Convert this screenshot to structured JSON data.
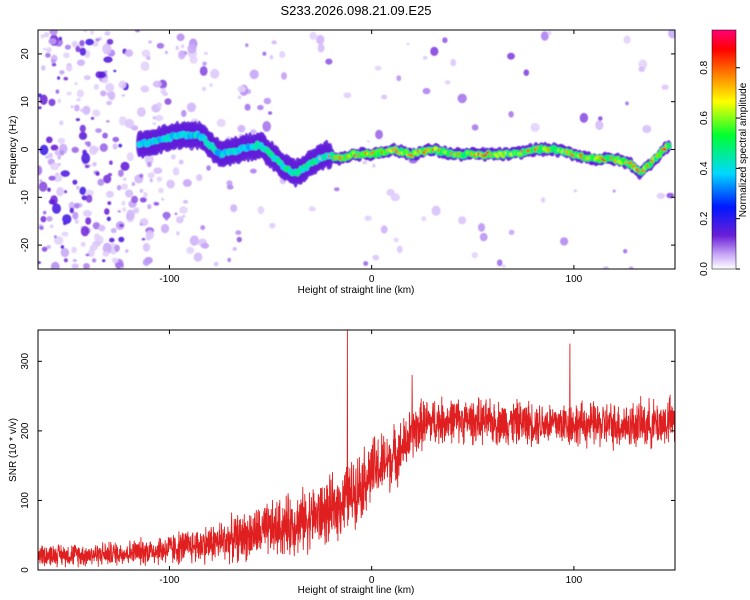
{
  "title": "S233.2026.098.21.09.E25",
  "chart_data": [
    {
      "type": "heatmap",
      "name": "spectrogram",
      "xlabel": "Height of straight line (km)",
      "ylabel": "Frequency (Hz)",
      "xlim": [
        -165,
        150
      ],
      "ylim": [
        -25,
        25
      ],
      "xticks": [
        -100,
        0,
        100
      ],
      "yticks": [
        -20,
        -10,
        0,
        10,
        20
      ],
      "xtick_labels": [
        "-100",
        "0",
        "100"
      ],
      "ytick_labels": [
        "-20",
        "-10",
        "0",
        "10",
        "20"
      ],
      "colorbar": {
        "label": "Normalized spectral amplitude",
        "range": [
          0.0,
          0.95
        ],
        "ticks": [
          "0.0",
          "0.2",
          "0.4",
          "0.6",
          "0.8"
        ],
        "tick_values": [
          0.0,
          0.2,
          0.4,
          0.6,
          0.8
        ],
        "colormap": "rainbow"
      },
      "ridge": {
        "description": "strongest spectral line, frequency (Hz) vs height (km)",
        "x": [
          -115,
          -105,
          -95,
          -85,
          -75,
          -65,
          -55,
          -45,
          -38,
          -30,
          -22,
          -15,
          -10,
          0,
          10,
          20,
          30,
          40,
          50,
          60,
          70,
          80,
          90,
          100,
          110,
          120,
          128,
          133,
          140,
          147
        ],
        "freq": [
          1,
          2,
          3,
          3,
          -1,
          0,
          1,
          -3,
          -5,
          -3,
          -1,
          -2,
          -1,
          -1,
          0,
          -1,
          0,
          -1,
          -1,
          -1,
          -1,
          0,
          0,
          -1,
          -2,
          -2,
          -3,
          -5,
          -2,
          1
        ]
      }
    },
    {
      "type": "line",
      "name": "snr",
      "xlabel": "Height of straight line (km)",
      "ylabel": "SNR (10 * v/v)",
      "xlim": [
        -165,
        150
      ],
      "ylim": [
        0,
        345
      ],
      "xticks": [
        -100,
        0,
        100
      ],
      "yticks": [
        0,
        100,
        200,
        300
      ],
      "xtick_labels": [
        "-100",
        "0",
        "100"
      ],
      "ytick_labels": [
        "0",
        "100",
        "200",
        "300"
      ],
      "color": "#e02020",
      "baseline": {
        "x": [
          -165,
          -140,
          -120,
          -100,
          -80,
          -60,
          -40,
          -20,
          -10,
          0,
          5,
          10,
          15,
          20,
          25,
          30,
          40,
          60,
          80,
          100,
          120,
          140,
          150
        ],
        "y": [
          22,
          22,
          25,
          30,
          38,
          50,
          65,
          85,
          110,
          140,
          150,
          160,
          175,
          195,
          210,
          213,
          216,
          212,
          212,
          210,
          208,
          210,
          215
        ]
      },
      "noise_amplitude": {
        "x": [
          -165,
          -120,
          -80,
          -40,
          0,
          20,
          40,
          100,
          150
        ],
        "amp": [
          12,
          14,
          22,
          35,
          40,
          30,
          25,
          25,
          28
        ]
      },
      "spikes": [
        {
          "x": -12,
          "y": 345
        },
        {
          "x": 98,
          "y": 325
        },
        {
          "x": 20,
          "y": 280
        }
      ]
    }
  ]
}
